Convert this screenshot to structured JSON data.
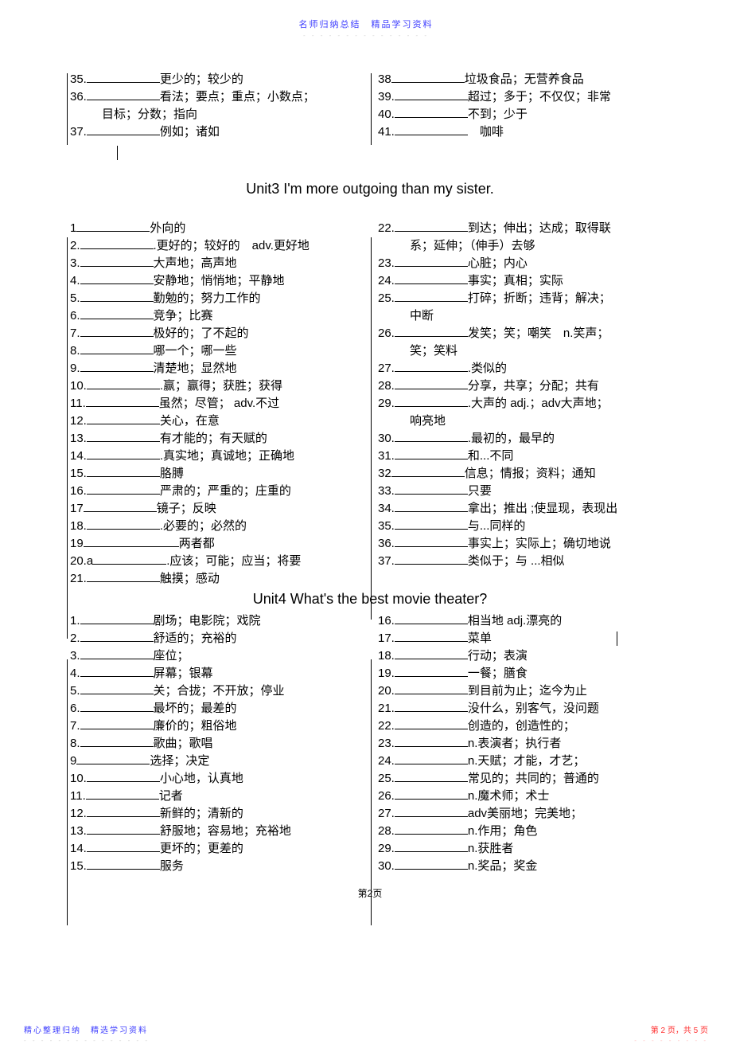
{
  "header": {
    "line1": "名师归纳总结　精品学习资料",
    "line2": "- - - - - - - - - - - - - - -"
  },
  "topSection": {
    "left": [
      {
        "n": "35.",
        "def": "更少的；较少的"
      },
      {
        "n": "36.",
        "def": "看法；要点；重点；小数点；"
      },
      {
        "n": "",
        "def": "目标；分数；指向",
        "indent": true,
        "noblank": true
      },
      {
        "n": "37.",
        "def": "例如；诸如"
      }
    ],
    "right": [
      {
        "n": "38",
        "def": "垃圾食品；无营养食品"
      },
      {
        "n": "39.",
        "def": "超过；多于；不仅仅；非常"
      },
      {
        "n": "40.",
        "def": "不到；少于"
      },
      {
        "n": "41.",
        "def": "　咖啡"
      }
    ]
  },
  "unit3Title": "Unit3  I'm more outgoing than my sister.",
  "unit3": {
    "left": [
      {
        "n": "1",
        "def": "外向的"
      },
      {
        "n": "2.",
        "def": ".更好的；较好的　adv.更好地"
      },
      {
        "n": "3.",
        "def": "大声地；高声地"
      },
      {
        "n": "4.",
        "def": "安静地；悄悄地；平静地"
      },
      {
        "n": "5.",
        "def": "勤勉的；努力工作的"
      },
      {
        "n": "6.",
        "def": "竞争；比赛"
      },
      {
        "n": "7.",
        "def": "极好的；了不起的"
      },
      {
        "n": "8.",
        "def": "哪一个；哪一些"
      },
      {
        "n": "9.",
        "def": "清楚地；显然地"
      },
      {
        "n": "10.",
        "def": ".赢；赢得；获胜；获得"
      },
      {
        "n": "11.",
        "def": "虽然；尽管；  adv.不过"
      },
      {
        "n": "12.",
        "def": "关心，在意"
      },
      {
        "n": "13.",
        "def": "有才能的；有天赋的"
      },
      {
        "n": "14.",
        "def": ".真实地；真诚地；正确地"
      },
      {
        "n": "15.",
        "def": "胳膊"
      },
      {
        "n": "16.",
        "def": "严肃的；严重的；庄重的"
      },
      {
        "n": "17",
        "def": "镜子；反映"
      },
      {
        "n": "18.",
        "def": ".必要的；必然的"
      },
      {
        "n": "19",
        "def": "两者都",
        "long": true
      },
      {
        "n": "20.a",
        "def": ".应该；可能；应当；将要"
      },
      {
        "n": "21.",
        "def": "触摸；感动"
      }
    ],
    "right": [
      {
        "n": "22.",
        "def": "到达；伸出；达成；取得联"
      },
      {
        "n": "",
        "def": "系；延伸；（伸手）去够",
        "indent": true,
        "noblank": true
      },
      {
        "n": "23.",
        "def": "心脏；内心"
      },
      {
        "n": "24.",
        "def": "事实；真相；实际"
      },
      {
        "n": "25.",
        "def": "打碎；折断；违背；解决；"
      },
      {
        "n": "",
        "def": "中断",
        "indent": true,
        "noblank": true
      },
      {
        "n": "26.",
        "def": "发笑；笑；嘲笑　n.笑声；"
      },
      {
        "n": "",
        "def": "笑；笑料",
        "indent": true,
        "noblank": true
      },
      {
        "n": "27.",
        "def": ".类似的"
      },
      {
        "n": "28.",
        "def": "分享，共享；分配；共有"
      },
      {
        "n": "29.",
        "def": ".大声的  adj.；adv大声地；"
      },
      {
        "n": "",
        "def": "响亮地",
        "indent": true,
        "noblank": true
      },
      {
        "n": "30.",
        "def": ".最初的，最早的"
      },
      {
        "n": "31.",
        "def": "和...不同"
      },
      {
        "n": "32",
        "def": "信息；情报；资料；通知"
      },
      {
        "n": "33.",
        "def": "只要"
      },
      {
        "n": "34.",
        "def": "拿出；推出 ;使显现，表现出"
      },
      {
        "n": "35.",
        "def": "与...同样的"
      },
      {
        "n": "36.",
        "def": "事实上；实际上；确切地说"
      },
      {
        "n": "37.",
        "def": "类似于；与 ...相似"
      }
    ]
  },
  "unit4Title": "Unit4 What's the best movie theater?",
  "unit4": {
    "left": [
      {
        "n": "1.",
        "def": "剧场；电影院；戏院"
      },
      {
        "n": "2.",
        "def": "舒适的；充裕的"
      },
      {
        "n": "3.",
        "def": "座位；"
      },
      {
        "n": "4.",
        "def": "屏幕；银幕"
      },
      {
        "n": "5.",
        "def": "关；合拢；不开放；停业"
      },
      {
        "n": "6.",
        "def": "最坏的；最差的"
      },
      {
        "n": "7.",
        "def": "廉价的；粗俗地"
      },
      {
        "n": "8.",
        "def": "歌曲；歌唱"
      },
      {
        "n": "9",
        "def": "选择；决定"
      },
      {
        "n": "10.",
        "def": "小心地，认真地"
      },
      {
        "n": "11.",
        "def": "记者"
      },
      {
        "n": "12.",
        "def": "新鲜的；清新的"
      },
      {
        "n": "13.",
        "def": "舒服地；容易地；充裕地"
      },
      {
        "n": "14.",
        "def": "更坏的；更差的"
      },
      {
        "n": "15.",
        "def": "服务"
      }
    ],
    "right": [
      {
        "n": "16.",
        "def": "相当地 adj.漂亮的"
      },
      {
        "n": "17.",
        "def": "菜单"
      },
      {
        "n": "18.",
        "def": "行动；表演"
      },
      {
        "n": "19.",
        "def": "一餐；膳食"
      },
      {
        "n": "20.",
        "def": "到目前为止；迄今为止"
      },
      {
        "n": "21.",
        "def": "没什么，别客气，没问题"
      },
      {
        "n": "22.",
        "def": "创造的，创造性的；"
      },
      {
        "n": "23.",
        "def": "n.表演者；执行者"
      },
      {
        "n": "24.",
        "def": "n.天赋；才能，才艺；"
      },
      {
        "n": "25.",
        "def": "常见的；共同的；普通的"
      },
      {
        "n": "26.",
        "def": "n.魔术师；术士"
      },
      {
        "n": "27.",
        "def": "adv美丽地；完美地；"
      },
      {
        "n": "28.",
        "def": "n.作用；角色"
      },
      {
        "n": "29.",
        "def": "n.获胜者"
      },
      {
        "n": "30.",
        "def": "n.奖品；奖金"
      }
    ]
  },
  "pageNum": "第2页",
  "footer": {
    "leftText": "精心整理归纳　精选学习资料",
    "leftDots": "- - - - - - - - - - - - - - -",
    "rightText": "第 2 页，共 5 页",
    "rightDots": "- - - - - - - - -"
  }
}
